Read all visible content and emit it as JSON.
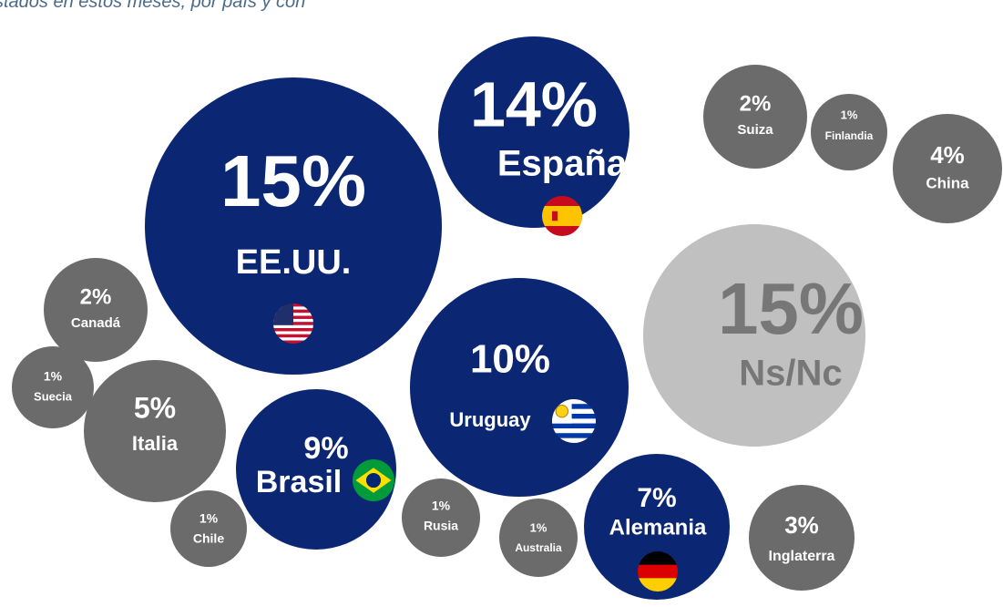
{
  "chart_data": {
    "type": "bubble",
    "subtitle": "stados en estos meses, por país y con",
    "categories": [
      "EE.UU.",
      "España",
      "Ns/Nc",
      "Uruguay",
      "Brasil",
      "Alemania",
      "Italia",
      "China",
      "Inglaterra",
      "Suiza",
      "Canadá",
      "Finlandia",
      "Suecia",
      "Chile",
      "Rusia",
      "Australia"
    ],
    "values": [
      15,
      14,
      15,
      10,
      9,
      7,
      5,
      4,
      3,
      2,
      2,
      1,
      1,
      1,
      1,
      1
    ],
    "value_labels": [
      "15%",
      "14%",
      "15%",
      "10%",
      "9%",
      "7%",
      "5%",
      "4%",
      "3%",
      "2%",
      "2%",
      "1%",
      "1%",
      "1%",
      "1%",
      "1%"
    ],
    "colors": [
      "#0b2773",
      "#0b2773",
      "#c0c0c0",
      "#0b2773",
      "#0b2773",
      "#0b2773",
      "#6b6b6b",
      "#6b6b6b",
      "#6b6b6b",
      "#6b6b6b",
      "#6b6b6b",
      "#6b6b6b",
      "#6b6b6b",
      "#6b6b6b",
      "#6b6b6b",
      "#6b6b6b"
    ]
  }
}
